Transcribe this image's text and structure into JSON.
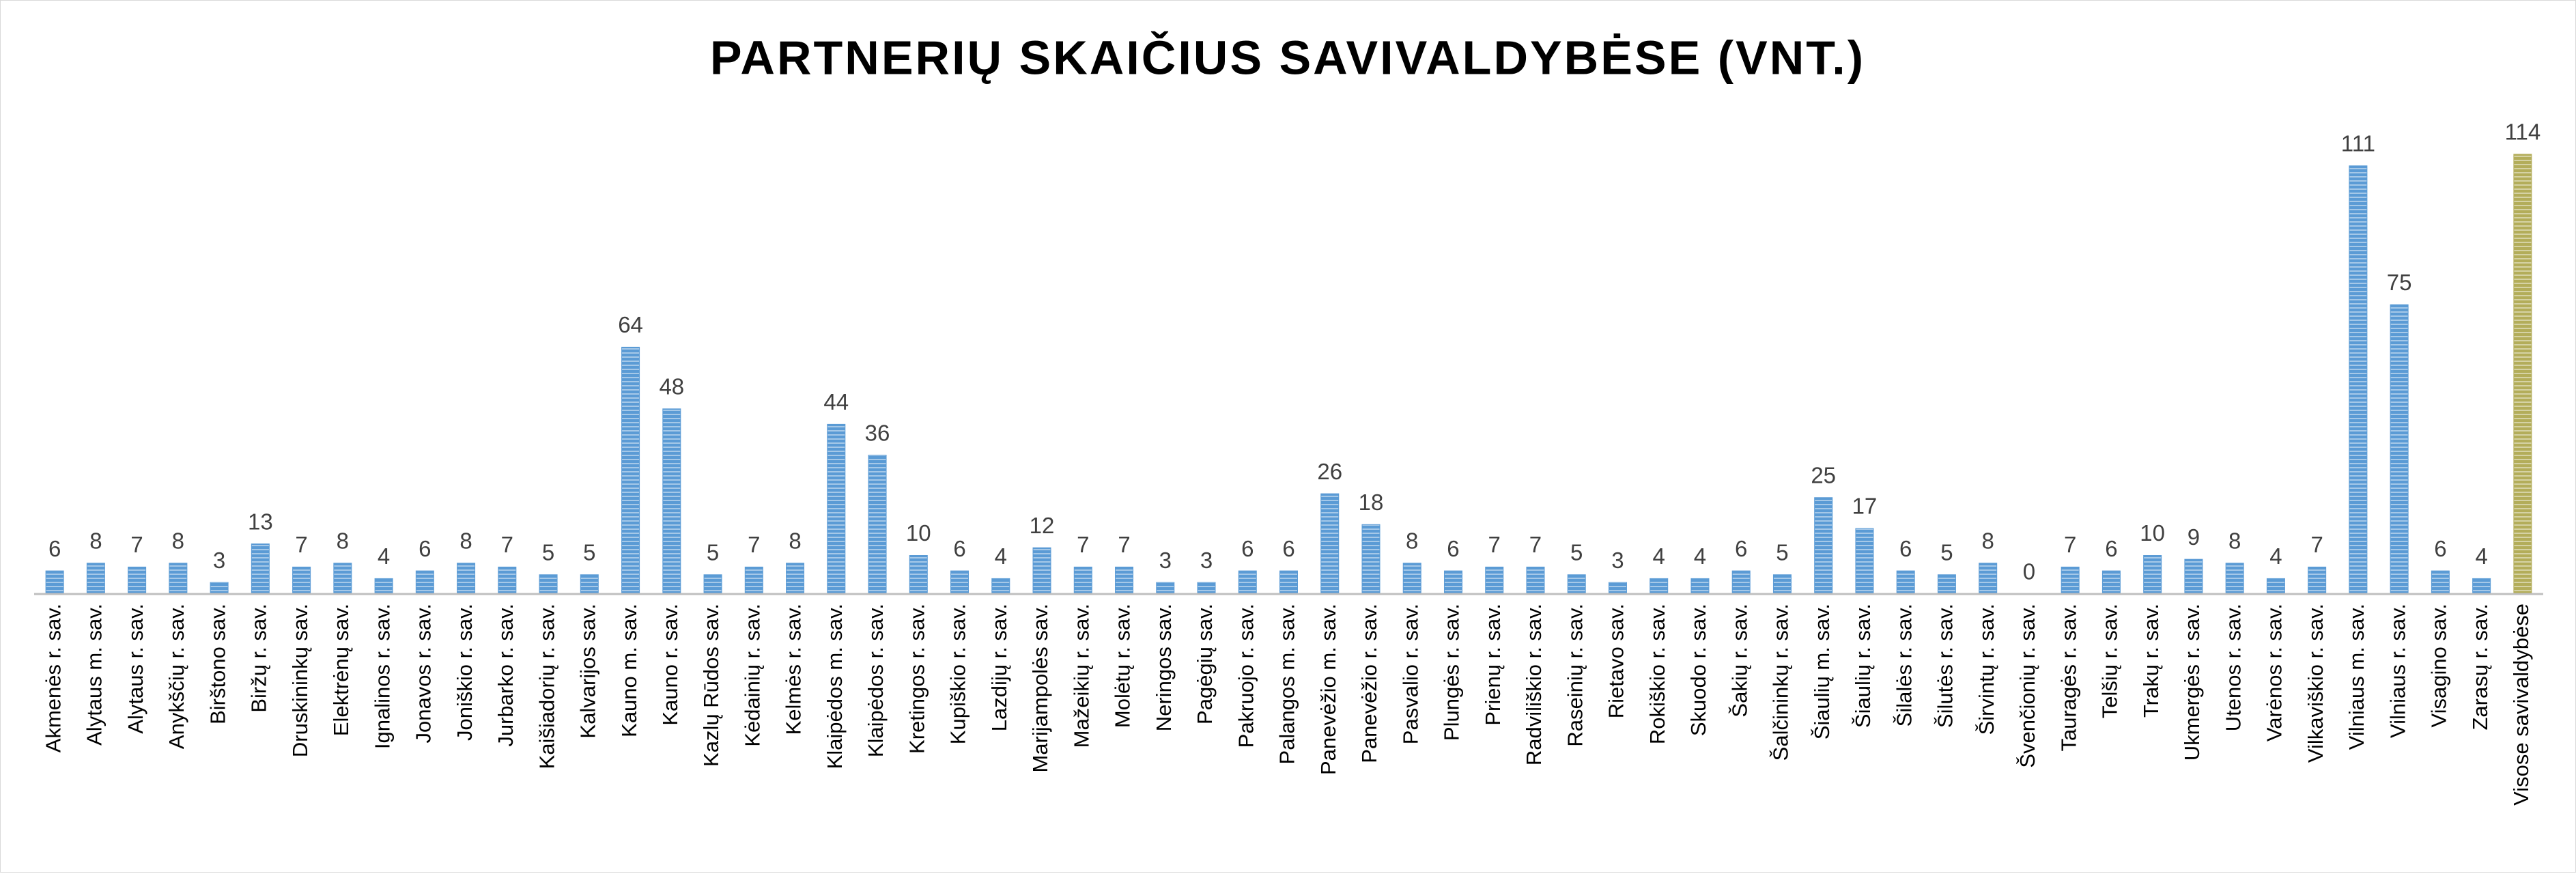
{
  "chart_data": {
    "type": "bar",
    "title": "PARTNERIŲ SKAIČIUS SAVIVALDYBĖSE (VNT.)",
    "categories": [
      "Akmenės r. sav.",
      "Alytaus m. sav.",
      "Alytaus r. sav.",
      "Anykščių r. sav.",
      "Birštono sav.",
      "Biržų r. sav.",
      "Druskininkų sav.",
      "Elektrėnų sav.",
      "Ignalinos r. sav.",
      "Jonavos r. sav.",
      "Joniškio r. sav.",
      "Jurbarko r. sav.",
      "Kaišiadorių r. sav.",
      "Kalvarijos sav.",
      "Kauno m. sav.",
      "Kauno r. sav.",
      "Kazlų Rūdos sav.",
      "Kėdainių r. sav.",
      "Kelmės r. sav.",
      "Klaipėdos m. sav.",
      "Klaipėdos r. sav.",
      "Kretingos r. sav.",
      "Kupiškio r. sav.",
      "Lazdijų r. sav.",
      "Marijampolės sav.",
      "Mažeikių r. sav.",
      "Molėtų r. sav.",
      "Neringos sav.",
      "Pagėgių sav.",
      "Pakruojo r. sav.",
      "Palangos m. sav.",
      "Panevėžio m. sav.",
      "Panevėžio r. sav.",
      "Pasvalio r. sav.",
      "Plungės r. sav.",
      "Prienų r. sav.",
      "Radviliškio r. sav.",
      "Raseinių r. sav.",
      "Rietavo sav.",
      "Rokiškio r. sav.",
      "Skuodo r. sav.",
      "Šakių r. sav.",
      "Šalčininkų r. sav.",
      "Šiaulių m. sav.",
      "Šiaulių r. sav.",
      "Šilalės r. sav.",
      "Šilutės r. sav.",
      "Širvintų r. sav.",
      "Švenčionių r. sav.",
      "Tauragės r. sav.",
      "Telšių r. sav.",
      "Trakų r. sav.",
      "Ukmergės r. sav.",
      "Utenos r. sav.",
      "Varėnos r. sav.",
      "Vilkaviškio r. sav.",
      "Vilniaus m. sav.",
      "Vilniaus r. sav.",
      "Visagino sav.",
      "Zarasų r. sav.",
      "Visose savivaldybėse"
    ],
    "values": [
      6,
      8,
      7,
      8,
      3,
      13,
      7,
      8,
      4,
      6,
      8,
      7,
      5,
      5,
      64,
      48,
      5,
      7,
      8,
      44,
      36,
      10,
      6,
      4,
      12,
      7,
      7,
      3,
      3,
      6,
      6,
      26,
      18,
      8,
      6,
      7,
      7,
      5,
      3,
      4,
      4,
      6,
      5,
      25,
      17,
      6,
      5,
      8,
      0,
      7,
      6,
      10,
      9,
      8,
      4,
      7,
      111,
      75,
      6,
      4,
      114
    ],
    "colors": [
      "#5b9bd5",
      "#5b9bd5",
      "#5b9bd5",
      "#5b9bd5",
      "#5b9bd5",
      "#5b9bd5",
      "#5b9bd5",
      "#5b9bd5",
      "#5b9bd5",
      "#5b9bd5",
      "#5b9bd5",
      "#5b9bd5",
      "#5b9bd5",
      "#5b9bd5",
      "#5b9bd5",
      "#5b9bd5",
      "#5b9bd5",
      "#5b9bd5",
      "#5b9bd5",
      "#5b9bd5",
      "#5b9bd5",
      "#5b9bd5",
      "#5b9bd5",
      "#5b9bd5",
      "#5b9bd5",
      "#5b9bd5",
      "#5b9bd5",
      "#5b9bd5",
      "#5b9bd5",
      "#5b9bd5",
      "#5b9bd5",
      "#5b9bd5",
      "#5b9bd5",
      "#5b9bd5",
      "#5b9bd5",
      "#5b9bd5",
      "#5b9bd5",
      "#5b9bd5",
      "#5b9bd5",
      "#5b9bd5",
      "#5b9bd5",
      "#5b9bd5",
      "#5b9bd5",
      "#5b9bd5",
      "#5b9bd5",
      "#5b9bd5",
      "#5b9bd5",
      "#5b9bd5",
      "#5b9bd5",
      "#5b9bd5",
      "#5b9bd5",
      "#5b9bd5",
      "#5b9bd5",
      "#5b9bd5",
      "#5b9bd5",
      "#5b9bd5",
      "#5b9bd5",
      "#5b9bd5",
      "#5b9bd5",
      "#5b9bd5",
      "#b3ad5a"
    ],
    "ylim": [
      0,
      120
    ]
  }
}
